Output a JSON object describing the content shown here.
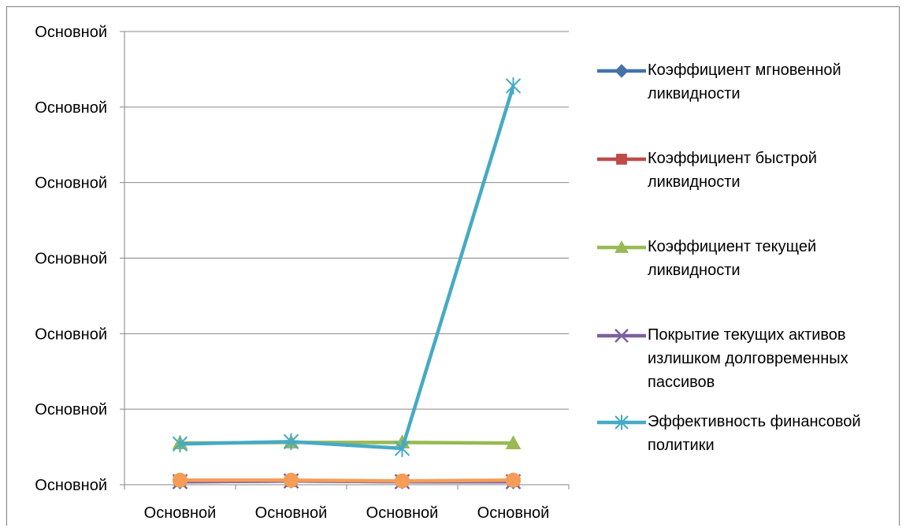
{
  "chart_data": {
    "type": "line",
    "categories": [
      "Основной",
      "Основной",
      "Основной",
      "Основной"
    ],
    "y_tick_labels": [
      "Основной",
      "Основной",
      "Основной",
      "Основной",
      "Основной",
      "Основной",
      "Основной"
    ],
    "ylim": [
      0,
      6
    ],
    "grid": true,
    "legend_position": "right",
    "series": [
      {
        "name": "Коэффициент мгновенной ликвидности",
        "color": "#4472a8",
        "marker": "diamond",
        "values": [
          0.04,
          0.05,
          0.04,
          0.04
        ]
      },
      {
        "name": "Коэффициент быстрой ликвидности",
        "color": "#be4b48",
        "marker": "square",
        "values": [
          0.05,
          0.05,
          0.05,
          0.05
        ]
      },
      {
        "name": "Коэффициент текущей ликвидности",
        "color": "#98b954",
        "marker": "triangle",
        "values": [
          0.55,
          0.56,
          0.56,
          0.55
        ]
      },
      {
        "name": "Покрытие текущих активов излишком долговременных пассивов",
        "color": "#7d60a0",
        "marker": "x",
        "values": [
          0.04,
          0.05,
          0.04,
          0.04
        ]
      },
      {
        "name": "Эффективность финансовой политики",
        "color": "#46aac5",
        "marker": "star",
        "values": [
          0.54,
          0.57,
          0.48,
          5.28
        ]
      },
      {
        "name": "",
        "color": "#f59d56",
        "marker": "circle",
        "values": [
          0.06,
          0.06,
          0.05,
          0.06
        ]
      }
    ]
  }
}
